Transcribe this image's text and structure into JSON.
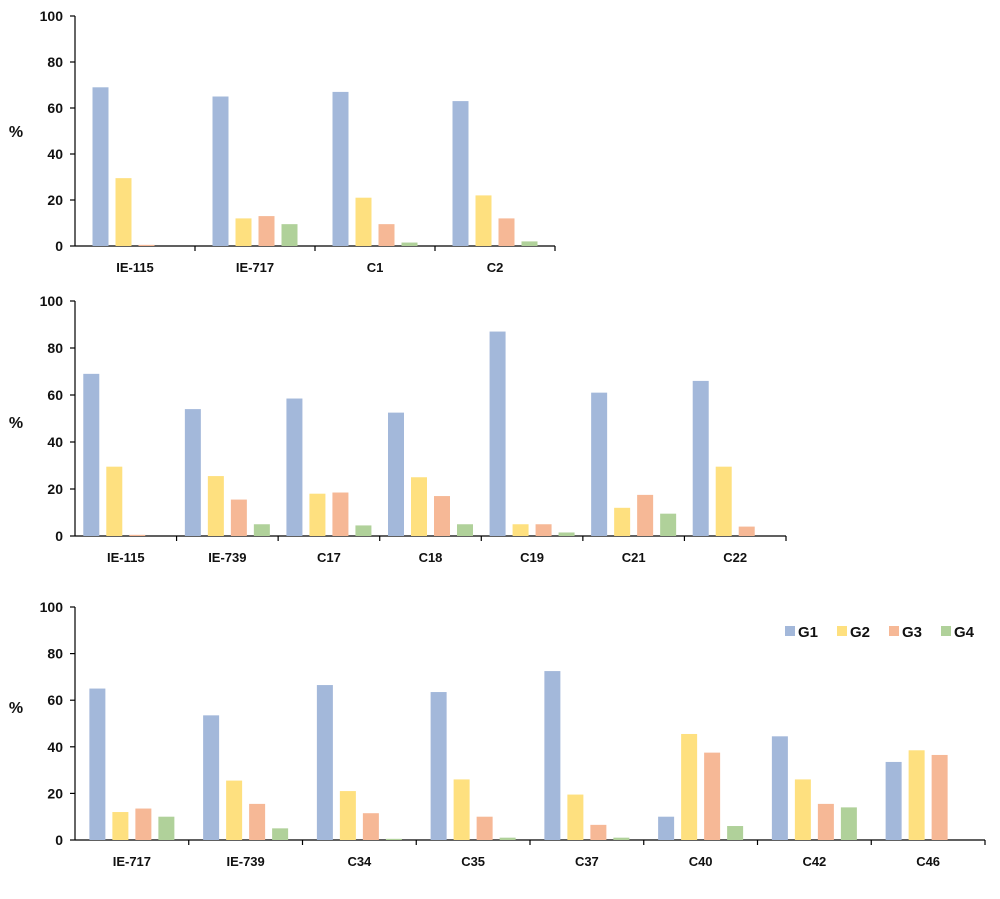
{
  "colors": {
    "G1": "#a3b8da",
    "G2": "#fee07f",
    "G3": "#f6b896",
    "G4": "#b0d19a"
  },
  "chart_data": [
    {
      "type": "bar",
      "categories": [
        "IE-115",
        "IE-717",
        "C1",
        "C2"
      ],
      "series": [
        {
          "name": "G1",
          "values": [
            69,
            65,
            67,
            63
          ]
        },
        {
          "name": "G2",
          "values": [
            29.5,
            12,
            21,
            22
          ]
        },
        {
          "name": "G3",
          "values": [
            0.5,
            13,
            9.5,
            12
          ]
        },
        {
          "name": "G4",
          "values": [
            0,
            9.5,
            1.5,
            2
          ]
        }
      ],
      "ylabel": "%",
      "ylim": [
        0,
        100
      ],
      "yticks": [
        0,
        20,
        40,
        60,
        80,
        100
      ],
      "grid": false
    },
    {
      "type": "bar",
      "categories": [
        "IE-115",
        "IE-739",
        "C17",
        "C18",
        "C19",
        "C21",
        "C22"
      ],
      "series": [
        {
          "name": "G1",
          "values": [
            69,
            54,
            58.5,
            52.5,
            87,
            61,
            66
          ]
        },
        {
          "name": "G2",
          "values": [
            29.5,
            25.5,
            18,
            25,
            5,
            12,
            29.5
          ]
        },
        {
          "name": "G3",
          "values": [
            0.5,
            15.5,
            18.5,
            17,
            5,
            17.5,
            4
          ]
        },
        {
          "name": "G4",
          "values": [
            0,
            5,
            4.5,
            5,
            1.5,
            9.5,
            0
          ]
        }
      ],
      "ylabel": "%",
      "ylim": [
        0,
        100
      ],
      "yticks": [
        0,
        20,
        40,
        60,
        80,
        100
      ],
      "grid": false
    },
    {
      "type": "bar",
      "categories": [
        "IE-717",
        "IE-739",
        "C34",
        "C35",
        "C37",
        "C40",
        "C42",
        "C46"
      ],
      "series": [
        {
          "name": "G1",
          "values": [
            65,
            53.5,
            66.5,
            63.5,
            72.5,
            10,
            44.5,
            33.5
          ]
        },
        {
          "name": "G2",
          "values": [
            12,
            25.5,
            21,
            26,
            19.5,
            45.5,
            26,
            38.5
          ]
        },
        {
          "name": "G3",
          "values": [
            13.5,
            15.5,
            11.5,
            10,
            6.5,
            37.5,
            15.5,
            36.5
          ]
        },
        {
          "name": "G4",
          "values": [
            10,
            5,
            0.5,
            1,
            1,
            6,
            14,
            0
          ]
        }
      ],
      "ylabel": "%",
      "ylim": [
        0,
        100
      ],
      "yticks": [
        0,
        20,
        40,
        60,
        80,
        100
      ],
      "legend": {
        "entries": [
          "G1",
          "G2",
          "G3",
          "G4"
        ],
        "position": "top-right"
      },
      "grid": false
    }
  ]
}
